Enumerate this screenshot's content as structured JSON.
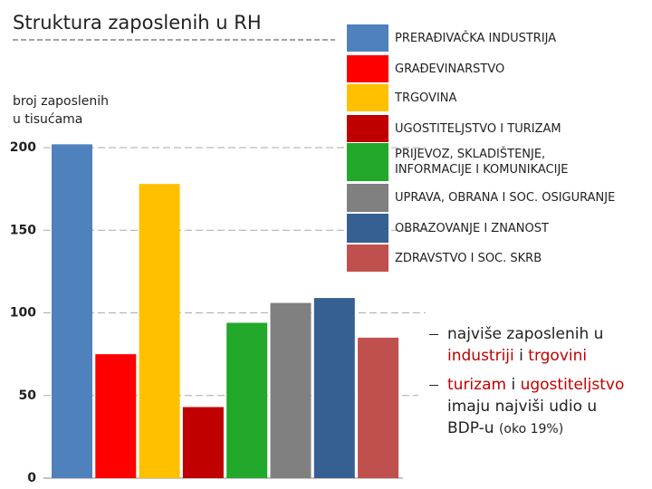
{
  "chart_data": {
    "type": "bar",
    "title": "Struktura zaposlenih u RH",
    "y_label": "broj zaposlenih\nu tisućama",
    "categories": [
      "PRERAĐIVAČKA INDUSTRIJA",
      "GRAĐEVINARSTVO",
      "TRGOVINA",
      "UGOSTITELJSTVO I TURIZAM",
      "PRIJEVOZ, SKLADIŠTENJE,\nINFORMACIJE I KOMUNIKACIJE",
      "UPRAVA, OBRANA I SOC. OSIGURANJE",
      "OBRAZOVANJE I ZNANOST",
      "ZDRAVSTVO I SOC. SKRB"
    ],
    "values": [
      202,
      75,
      178,
      43,
      94,
      106,
      109,
      85
    ],
    "colors": [
      "#4f81bd",
      "#ff0000",
      "#ffc000",
      "#c00000",
      "#22a82a",
      "#808080",
      "#366092",
      "#c0504d"
    ],
    "ylim": [
      0,
      200
    ],
    "yticks": [
      0,
      50,
      100,
      150,
      200
    ],
    "grid": true,
    "annotations": [
      [
        {
          "text": "najviše zaposlenih u ",
          "color": "#222222"
        },
        {
          "text": "industriji",
          "color": "#c00000"
        },
        {
          "text": " i ",
          "color": "#222222"
        },
        {
          "text": "trgovini",
          "color": "#c00000"
        }
      ],
      [
        {
          "text": "turizam",
          "color": "#c00000"
        },
        {
          "text": " i ",
          "color": "#222222"
        },
        {
          "text": "ugostiteljstvo",
          "color": "#c00000"
        },
        {
          "text": " imaju najviši udio u BDP-u ",
          "color": "#222222"
        },
        {
          "text": "(oko 19%)",
          "color": "#222222"
        }
      ]
    ]
  }
}
